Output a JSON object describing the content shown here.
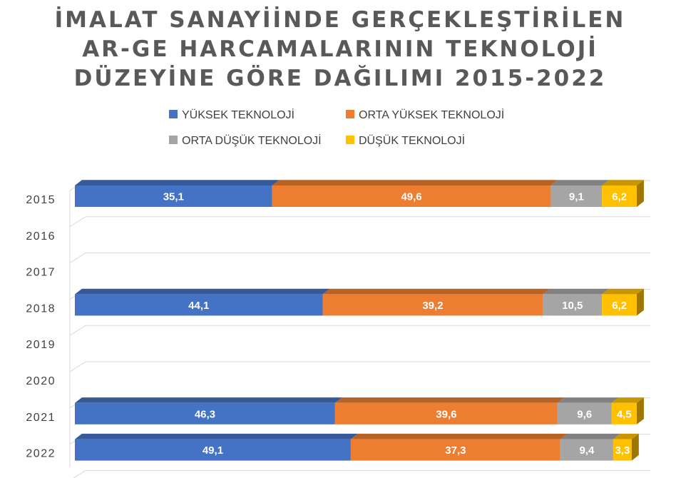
{
  "chart_data": {
    "type": "bar",
    "orientation": "horizontal",
    "stacked": true,
    "percent_stacked": true,
    "three_d": true,
    "title_lines": [
      "İMALAT SANAYİİNDE GERÇEKLEŞTİRİLEN",
      "AR-GE HARCAMALARININ TEKNOLOJİ",
      "DÜZEYİNE GÖRE DAĞILIMI  2015-2022"
    ],
    "categories": [
      "2015",
      "2016",
      "2017",
      "2018",
      "2019",
      "2020",
      "2021",
      "2022"
    ],
    "series": [
      {
        "name": "YÜKSEK TEKNOLOJİ",
        "color": "#4472C4",
        "values": [
          35.1,
          null,
          null,
          44.1,
          null,
          null,
          46.3,
          49.1
        ],
        "labels": [
          "35,1",
          "",
          "",
          "44,1",
          "",
          "",
          "46,3",
          "49,1"
        ]
      },
      {
        "name": "ORTA YÜKSEK TEKNOLOJİ",
        "color": "#ED7D31",
        "values": [
          49.6,
          null,
          null,
          39.2,
          null,
          null,
          39.6,
          37.3
        ],
        "labels": [
          "49,6",
          "",
          "",
          "39,2",
          "",
          "",
          "39,6",
          "37,3"
        ]
      },
      {
        "name": "ORTA DÜŞÜK TEKNOLOJİ",
        "color": "#A5A5A5",
        "values": [
          9.1,
          null,
          null,
          10.5,
          null,
          null,
          9.6,
          9.4
        ],
        "labels": [
          "9,1",
          "",
          "",
          "10,5",
          "",
          "",
          "9,6",
          "9,4"
        ]
      },
      {
        "name": "DÜŞÜK TEKNOLOJİ",
        "color": "#FFC000",
        "values": [
          6.2,
          null,
          null,
          6.2,
          null,
          null,
          4.5,
          3.3
        ],
        "labels": [
          "6,2",
          "",
          "",
          "6,2",
          "",
          "",
          "4,5",
          "3,3"
        ]
      }
    ],
    "xlim": [
      0,
      100
    ],
    "grid": true,
    "legend_position": "top"
  }
}
